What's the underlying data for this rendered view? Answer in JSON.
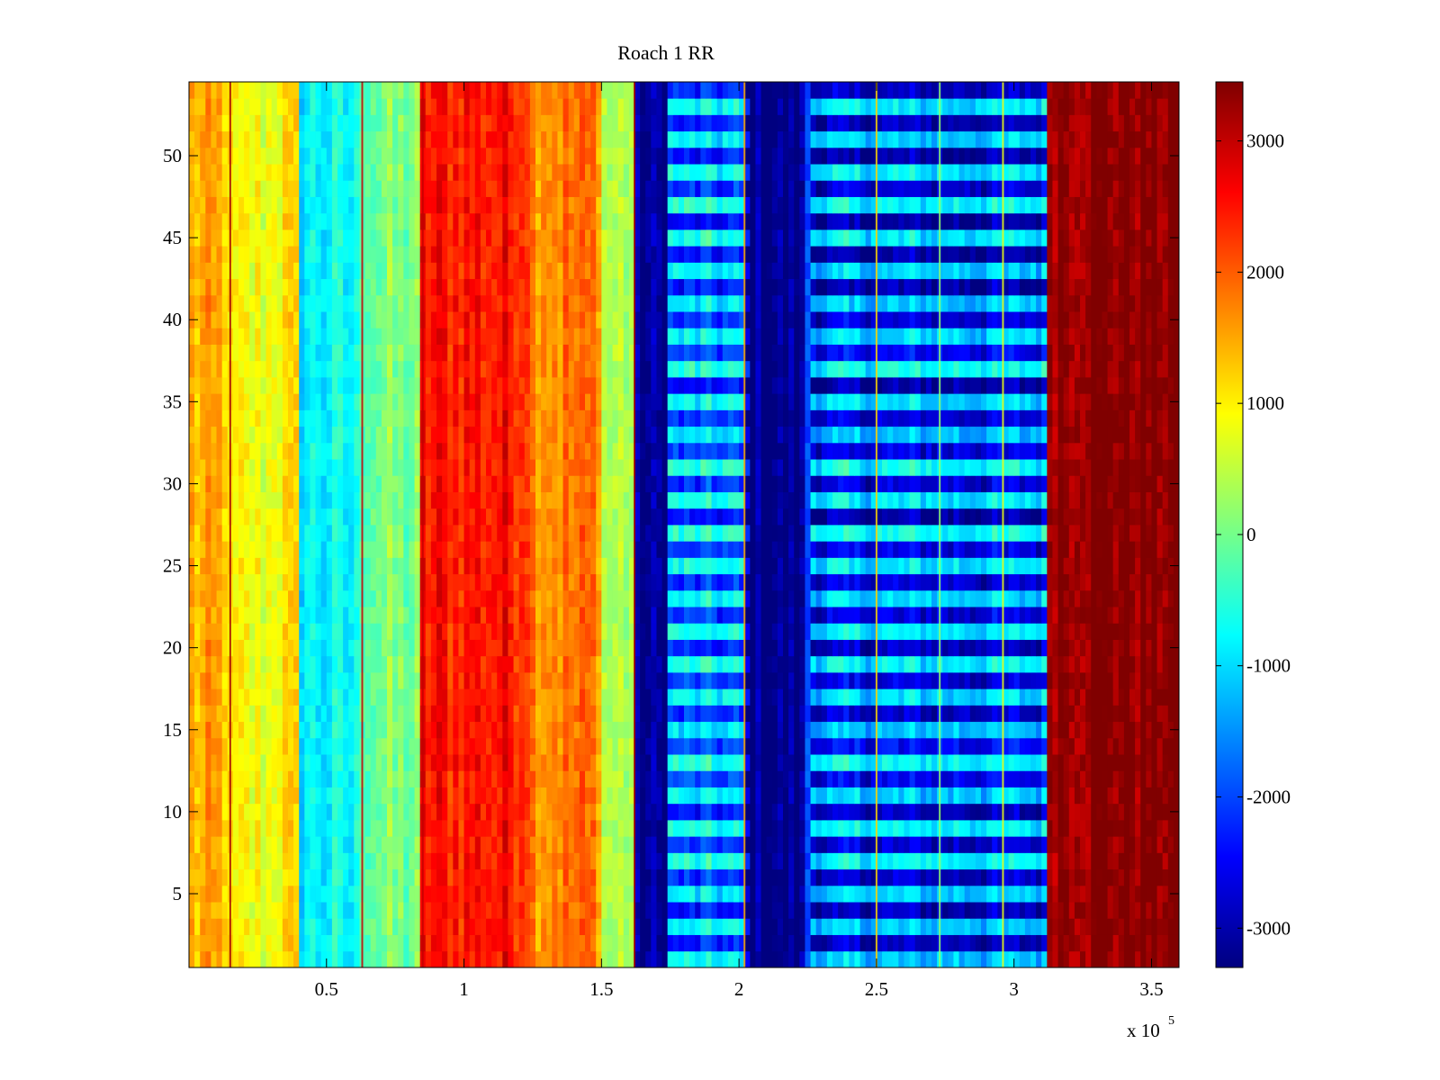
{
  "chart_data": {
    "type": "heatmap",
    "title": "Roach 1 RR",
    "xlabel": "",
    "ylabel": "",
    "x_exponent_label": "x 10",
    "x_exponent_power": "5",
    "xlim": [
      0,
      3.6
    ],
    "ylim": [
      0.5,
      54.5
    ],
    "x_ticks": [
      0.5,
      1,
      1.5,
      2,
      2.5,
      3,
      3.5
    ],
    "x_tick_labels": [
      "0.5",
      "1",
      "1.5",
      "2",
      "2.5",
      "3",
      "3.5"
    ],
    "y_ticks": [
      5,
      10,
      15,
      20,
      25,
      30,
      35,
      40,
      45,
      50
    ],
    "y_tick_labels": [
      "5",
      "10",
      "15",
      "20",
      "25",
      "30",
      "35",
      "40",
      "45",
      "50"
    ],
    "colorbar": {
      "colormap": "jet",
      "clim": [
        -3300,
        3450
      ],
      "ticks": [
        -3000,
        -2000,
        -1000,
        0,
        1000,
        2000,
        3000
      ],
      "tick_labels": [
        "-3000",
        "-2000",
        "-1000",
        "0",
        "1000",
        "2000",
        "3000"
      ]
    },
    "rows": 54,
    "column_profile": [
      {
        "x_from": 0.0,
        "x_to": 0.15,
        "value": 1400
      },
      {
        "x_from": 0.15,
        "x_to": 0.3,
        "value": 800
      },
      {
        "x_from": 0.3,
        "x_to": 0.4,
        "value": 1000
      },
      {
        "x_from": 0.4,
        "x_to": 0.62,
        "value": -800
      },
      {
        "x_from": 0.62,
        "x_to": 0.85,
        "value": 0
      },
      {
        "x_from": 0.85,
        "x_to": 1.25,
        "value": 2500
      },
      {
        "x_from": 1.25,
        "x_to": 1.5,
        "value": 1800
      },
      {
        "x_from": 1.5,
        "x_to": 1.62,
        "value": 400
      },
      {
        "x_from": 1.62,
        "x_to": 1.74,
        "value": -3200
      },
      {
        "x_from": 1.74,
        "x_to": 2.03,
        "value": -1500
      },
      {
        "x_from": 2.03,
        "x_to": 2.25,
        "value": -3250
      },
      {
        "x_from": 2.25,
        "x_to": 3.12,
        "value": -1900
      },
      {
        "x_from": 3.12,
        "x_to": 3.6,
        "value": 3450
      }
    ],
    "narrow_lines": [
      {
        "x": 0.15,
        "value": 3200
      },
      {
        "x": 0.63,
        "value": 3000
      },
      {
        "x": 0.85,
        "value": 3000
      },
      {
        "x": 1.62,
        "value": 3200
      },
      {
        "x": 2.02,
        "value": 1500
      },
      {
        "x": 2.5,
        "value": 1200
      },
      {
        "x": 2.73,
        "value": 200
      },
      {
        "x": 2.96,
        "value": 800
      }
    ]
  }
}
